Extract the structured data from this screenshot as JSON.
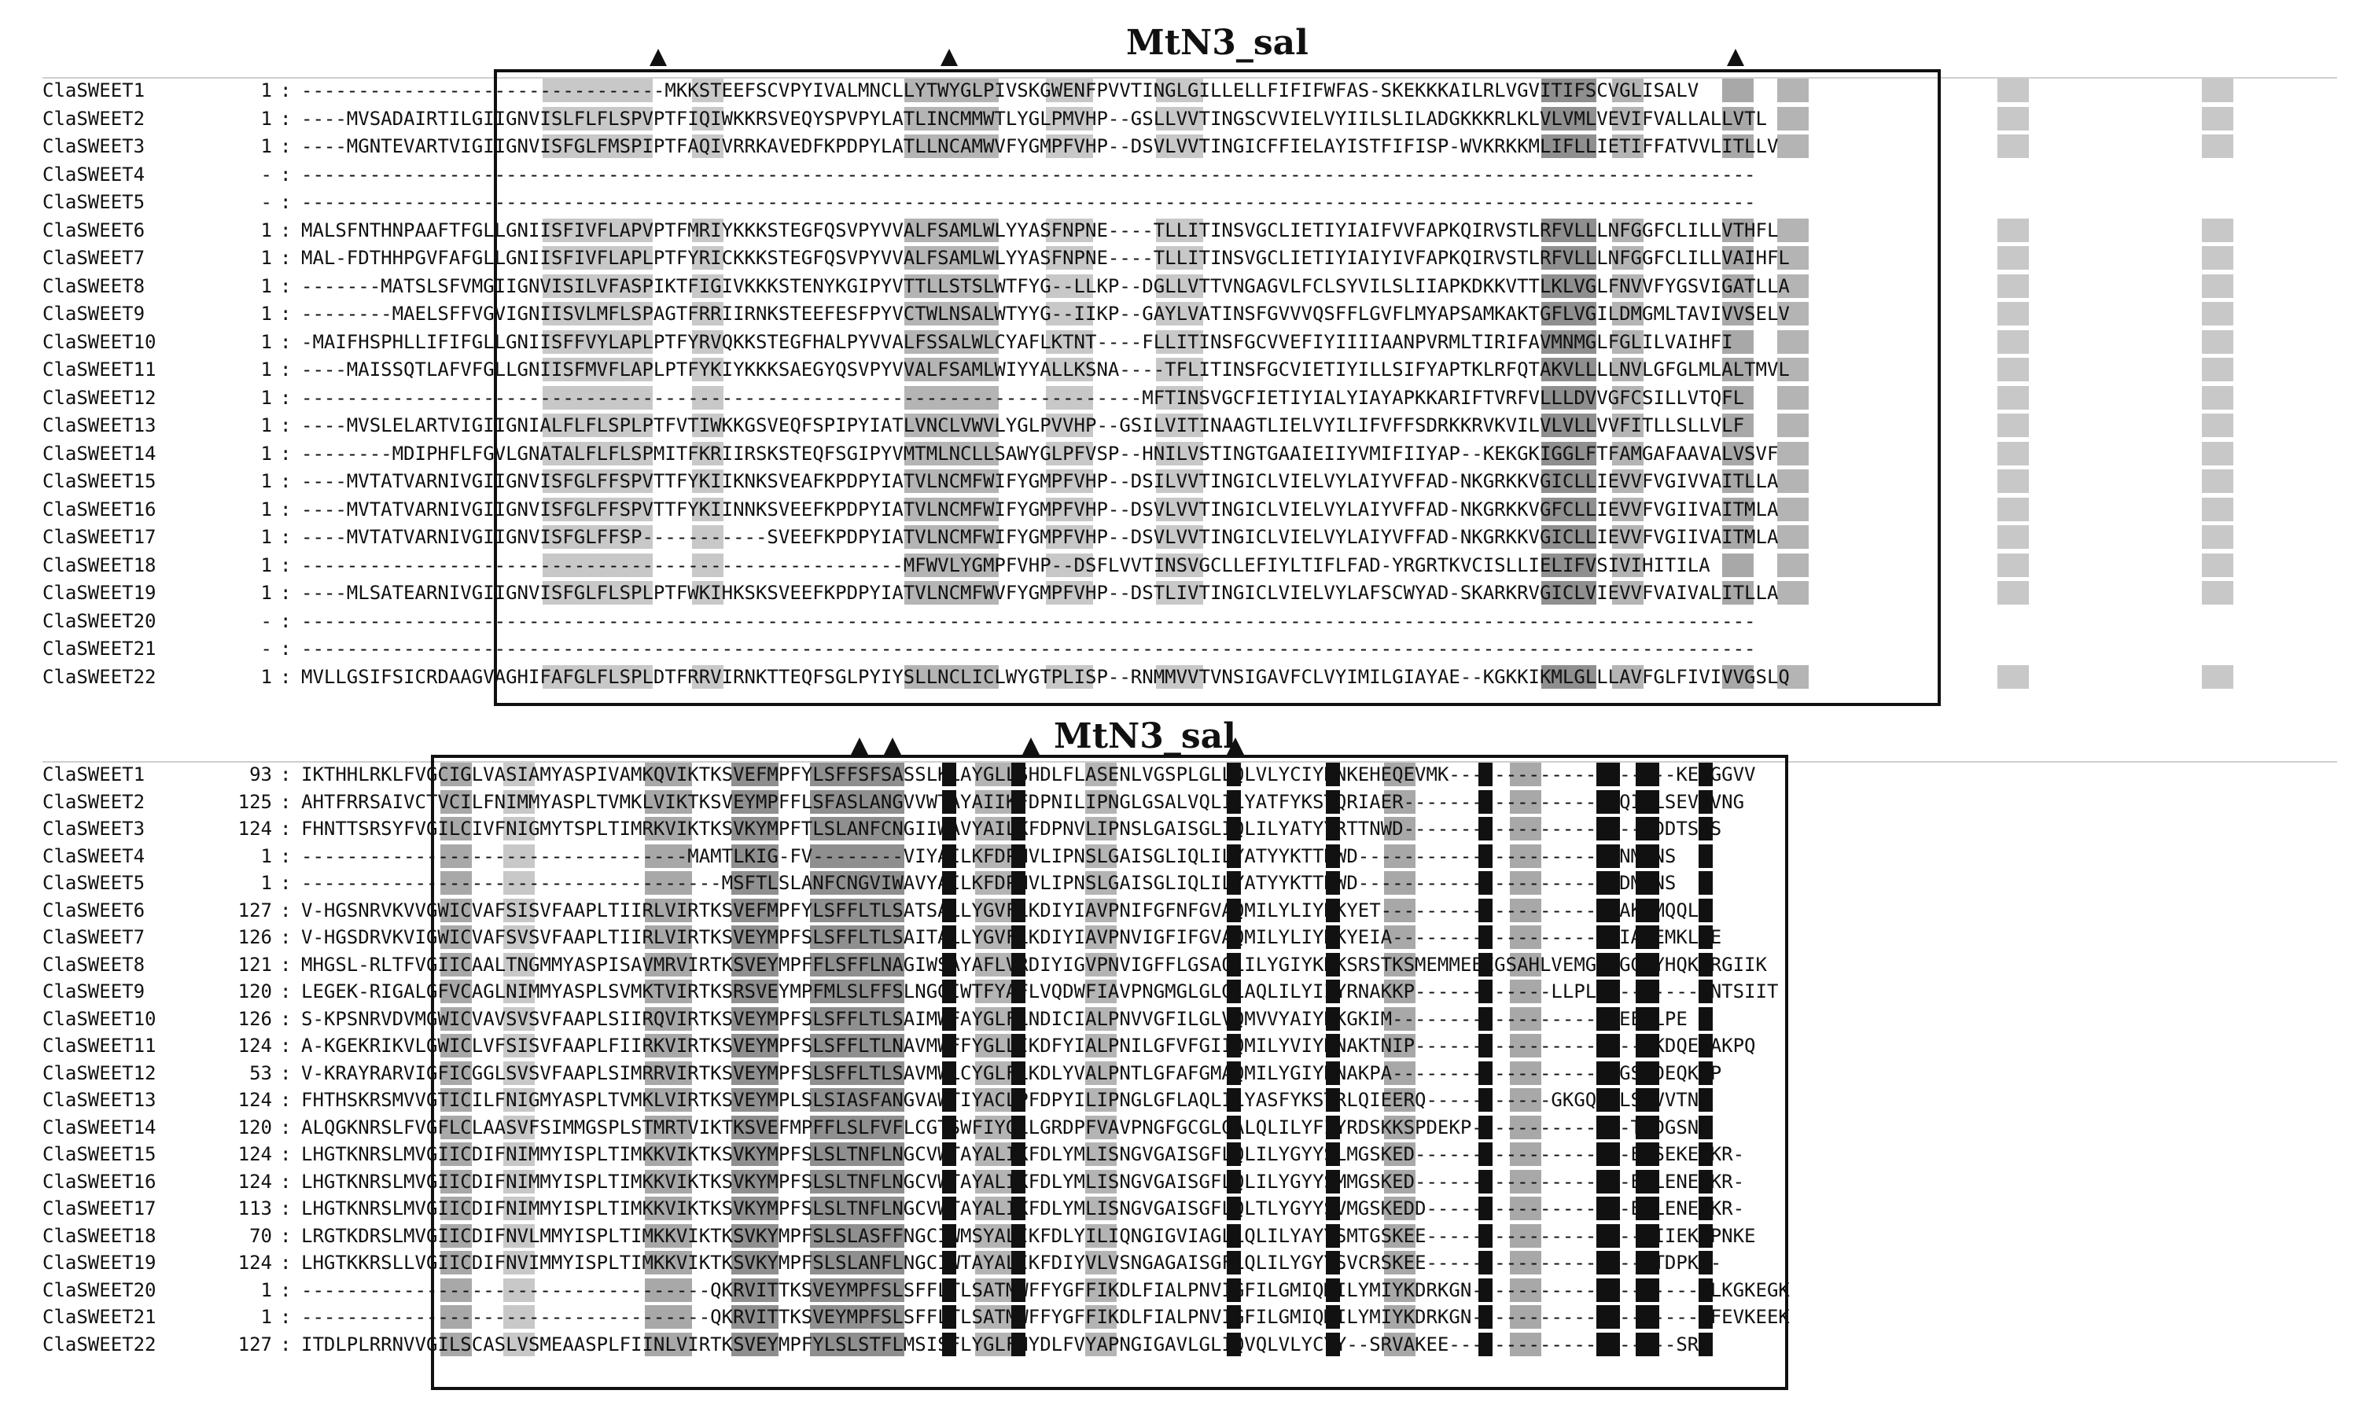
{
  "block1": {
    "title": "MtN3_sal",
    "rows": [
      {
        "name": "ClaSWEET1",
        "num": "1",
        "seq": "--------------------------------MKKSTEEFSCVPYIVALMNCLLYTWYGLPIVSKGWENFPVVTINGLGILLELLFIFIFWFAS-SKEKKKAILRLVGVITIFSCVGLISALV"
      },
      {
        "name": "ClaSWEET2",
        "num": "1",
        "seq": "----MVSADAIRTILGIIGNVISLFLFLSPVPTFIQIWKKRSVEQYSPVPYLATLINCMMWTLYGLPMVHP--GSLLVVTINGSCVVIELVYIILSLILADGKKKRLKLVLVMLVEVIFVALLALLVTL"
      },
      {
        "name": "ClaSWEET3",
        "num": "1",
        "seq": "----MGNTEVARTVIGIIGNVISFGLFMSPIPTFAQIVRRKAVEDFKPDPYLATLLNCAMWVFYGMPFVHP--DSVLVVTINGICFFIELAYISTFIFISP-WVKRKKMLIFLLIETIFFATVVLITLLV"
      },
      {
        "name": "ClaSWEET4",
        "num": "-",
        "seq": "--------------------------------------------------------------------------------------------------------------------------------"
      },
      {
        "name": "ClaSWEET5",
        "num": "-",
        "seq": "--------------------------------------------------------------------------------------------------------------------------------"
      },
      {
        "name": "ClaSWEET6",
        "num": "1",
        "seq": "MALSFNTHNPAAFTFGLLGNIISFIVFLAPVPTFMRIYKKKSTEGFQSVPYVVALFSAMLWLYYASFNPNE----TLLITINSVGCLIETIYIAIFVVFAPKQIRVSTLRFVLLLNFGGFCLILLVTHFL"
      },
      {
        "name": "ClaSWEET7",
        "num": "1",
        "seq": "MAL-FDTHHPGVFAFGLLGNIISFIVFLAPLPTFYRICKKKSTEGFQSVPYVVALFSAMLWLYYASFNPNE----TLLITINSVGCLIETIYIAIYIVFAPKQIRVSTLRFVLLLNFGGFCLILLVAIHFL"
      },
      {
        "name": "ClaSWEET8",
        "num": "1",
        "seq": "-------MATSLSFVMGIIGNVISILVFASPIKTFIGIVKKKSTENYKGIPYVTTLLSTSLWTFYG--LLKP--DGLLVTTVNGAGVLFCLSYVILSLIIAPKDKKVTTLKLVGLFNVVFYGSVIGATLLA"
      },
      {
        "name": "ClaSWEET9",
        "num": "1",
        "seq": "--------MAELSFFVGVIGNIISVLMFLSPAGTFRRIIRNKSTEEFESFPYVCTWLNSALWTYYG--IIKP--GAYLVATINSFGVVVQSFFLGVFLMYAPSAMKAKTGFLVGILDMGMLTAVIVVSELV"
      },
      {
        "name": "ClaSWEET10",
        "num": "1",
        "seq": "-MAIFHSPHLLIFIFGLLGNIISFFVYLAPLPTFYRVQKKSTEGFHALPYVVALFSSALWLCYAFLKTNT----FLLITINSFGCVVEFIYIIIIAANPVRMLTIRIFAVMNMGLFGLILVAIHFI"
      },
      {
        "name": "ClaSWEET11",
        "num": "1",
        "seq": "----MAISSQTLAFVFGLLGNIISFMVFLAPLPTFYKIYKKKSAEGYQSVPYVVALFSAMLWIYYALLKSNA----TFLITINSFGCVIETIYILLSIFYAPTKLRFQTAKVLLLLNVLGFGLMLALTMVL"
      },
      {
        "name": "ClaSWEET12",
        "num": "1",
        "seq": "--------------------------------------------------------------------------MFTINSVGCFIETIYIALYIAYAPKKARIFTVRFVLLLDVVGFCSILLVTQFL"
      },
      {
        "name": "ClaSWEET13",
        "num": "1",
        "seq": "----MVSLELARTVIGIIGNIALFLFLSPLPTFVTIWKKGSVEQFSPIPYIATLVNCLVWVLYGLPVVHP--GSILVITINAAGTLIELVYILIFVFFSDRKKRVKVILVLVLLVVFITLLSLLVLF"
      },
      {
        "name": "ClaSWEET14",
        "num": "1",
        "seq": "--------MDIPHFLFGVLGNATALFLFLSPMITFKRIIRSKSTEQFSGIPYVMTMLNCLLSAWYGLPFVSP--HNILVSTINGTGAAIEIIYVMIFIIYAP--KEKGKIGGLFTFAMGAFAAVALVSVF"
      },
      {
        "name": "ClaSWEET15",
        "num": "1",
        "seq": "----MVTATVARNIVGIIGNVISFGLFFSPVTTFYKIIKNKSVEAFKPDPYIATVLNCMFWIFYGMPFVHP--DSILVVTINGICLVIELVYLAIYVFFAD-NKGRKKVGICLLIEVVFVGIVVAITLLA"
      },
      {
        "name": "ClaSWEET16",
        "num": "1",
        "seq": "----MVTATVARNIVGIIGNVISFGLFFSPVTTFYKIINNKSVEEFKPDPYIATVLNCMFWIFYGMPFVHP--DSVLVVTINGICLVIELVYLAIYVFFAD-NKGRKKVGFCLLIEVVFVGIIVAITMLA"
      },
      {
        "name": "ClaSWEET17",
        "num": "1",
        "seq": "----MVTATVARNIVGIIGNVISFGLFFSP-----------SVEEFKPDPYIATVLNCMFWIFYGMPFVHP--DSVLVVTINGICLVIELVYLAIYVFFAD-NKGRKKVGICLLIEVVFVGIIVAITMLA"
      },
      {
        "name": "ClaSWEET18",
        "num": "1",
        "seq": "-----------------------------------------------------MFWVLYGMPFVHP--DSFLVVTINSVGCLLEFIYLTIFLFAD-YRGRTKVCISLLIELIFVSIVIHITILA"
      },
      {
        "name": "ClaSWEET19",
        "num": "1",
        "seq": "----MLSATEARNIVGIIGNVISFGLFLSPLPTFWKIHKSKSVEEFKPDPYIATVLNCMFWVFYGMPFVHP--DSTLIVTINGICLVIELVYLAFSCWYAD-SKARKRVGICLVIEVVFVAIVALITLLA"
      },
      {
        "name": "ClaSWEET20",
        "num": "-",
        "seq": "--------------------------------------------------------------------------------------------------------------------------------"
      },
      {
        "name": "ClaSWEET21",
        "num": "-",
        "seq": "--------------------------------------------------------------------------------------------------------------------------------"
      },
      {
        "name": "ClaSWEET22",
        "num": "1",
        "seq": "MVLLGSIFSICRDAAGVAGHIFAFGLFLSPLDTFRRVIRNKTTEQFSGLPYIYSLLNCLICLWYGTPLISP--RNMMVVTVNSIGAVFCLVYIMILGIAYAE--KGKKIKMLGLLLAVFGLFIVIVVGSLQ"
      }
    ]
  },
  "block2": {
    "title": "MtN3_sal",
    "rows": [
      {
        "name": "ClaSWEET1",
        "num": "93",
        "seq": "IKTHHLRKLFVGCIGLVASIAMYASPIVAMKQVIKTKSVEFMPFYLSFFSFSASSLKLAYGLLSHDLFLASENLVGSPLGLLQLVLYCIYRNKEHEQEVMK--------------------KEKGGVV"
      },
      {
        "name": "ClaSWEET2",
        "num": "125",
        "seq": "AHTFRRSAIVCTVCILFNIMMYASPLTVMKLVIKTKSVEYMPFFLSFASLANGVVWTAYAIIKFDPNILIPNGLGSALVQLILYATFYKSTQRIAER-----------------KAQIRLSEVVVNG"
      },
      {
        "name": "ClaSWEET3",
        "num": "124",
        "seq": "FHNTTSRSYFVGILCIVFNIGMYTSPLTIMRKVIKTKSVKYMPFTLSLANFCNGIIWAVYAILKFDPNVLIPNSLGAISGLIQLILYATYYRTTNWD---------------------SDDTSHS"
      },
      {
        "name": "ClaSWEET4",
        "num": "1",
        "seq": "----------------------------------MAMTLKIG-FV--------VIYAILKFDPNVLIPNSLGAISGLIQLILYATYYKTTNWD---------------------DDNMSNS"
      },
      {
        "name": "ClaSWEET5",
        "num": "1",
        "seq": "-------------------------------------MSFTLSLANFCNGVIWAVYAILKFDPNVLIPNSLGAISGLIQLILYATYYKTTNWD---------------------SDDMLNS"
      },
      {
        "name": "ClaSWEET6",
        "num": "127",
        "seq": "V-HGSNRVKVVGWICVAFSISVFAAPLTIIRLVIRTKSVEFMPFYLSFFLTLSATSALLYGVFLKDIYIAVPNIFGFNFGVAQMILYLIYKKYET---------------------AKEMQQLP"
      },
      {
        "name": "ClaSWEET7",
        "num": "126",
        "seq": "V-HGSDRVKVIGWICVAFSVSVFAAPLTIIRLVIRTKSVEYMPFSLSFFLTLSAITALLYGVFLKDIYIAVPNVIGFIFGVAQMILYLIYKKYEIA--------------------IAKEMKLPE"
      },
      {
        "name": "ClaSWEET8",
        "num": "121",
        "seq": "MHGSL-RLTFVGIICAALTNGMMYASPISAVMRVIRTKSVEYMPFFLSFFLNAGIWSAYAFLVRDIYIGVPNVIGFFLGSAQLILYGIYKKKSRSTKSMEMMEEEGSAHLVEMGMNGGDYHQKNRGIIK"
      },
      {
        "name": "ClaSWEET9",
        "num": "120",
        "seq": "LEGEK-RIGALGFVCAGLNIMMYASPLSVMKTVIRTKSRSVEYMPFMLSLFFSLNGGIWTFYAFLVQDWFIAVPNGMGLGLGLAQLILYIIYRNAKKP------------LLPL----------NTSIIT"
      },
      {
        "name": "ClaSWEET10",
        "num": "126",
        "seq": "S-KPSNRVDVMGWICVAVSVSVFAAPLSIIRQVIRTKSVEYMPFSLSFFLTLSAIMWFAYGLFLNDICIALPNVVGFILGLVQMVVYAIYRKGKIM--------------------EEKLPE"
      },
      {
        "name": "ClaSWEET11",
        "num": "124",
        "seq": "A-KGEKRIKVLGWICLVFSISVFAAPLFIIRKVIRTKSVEYMPFSLSFFLTLNAVMWFFYGLLIKDFYIALPNILGFVFGIIQMILYVIYKNAKTNIP--------------------IKDQEGAKPQ"
      },
      {
        "name": "ClaSWEET12",
        "num": "53",
        "seq": "V-KRAYRARVIGFICGGLSVSVFAAPLSIMRRVIRTKSVEYMPFSLSFFLTLSAVMWLCYGLFLKDLYVALPNTLGFAFGMAQMILYGIYRNAKPA--------------------GSSDEQKLP"
      },
      {
        "name": "ClaSWEET13",
        "num": "124",
        "seq": "FHTHSKRSMVVGTICILFNIGMYASPLTVMKLVIRTKSVEYMPLSLSIASFANGVAWTIYACLPFDPYILIPNGLGFLAQLILYASFYKSTRLQIEERQ-----------GKGQVILSEVVTNG"
      },
      {
        "name": "ClaSWEET14",
        "num": "120",
        "seq": "ALQGKNRSLFVGFLCLAASVFSIMMGSPLSTMRTVIKTKSVEFMPFFLSLFVFLCGTSWFIYGLLGRDPFVAVPNGFGCGLGALQLILYFIYRDSKKSPDEKP--------------TNDGSNM"
      },
      {
        "name": "ClaSWEET15",
        "num": "124",
        "seq": "LHGTKNRSLMVGIICDIFNIMMYISPLTIMKKVIKTKSVKYMPFSLSLTNFLNGCVWTAYALIKFDLYMLISNGVGAISGFLQLILYGYYSLMGSKED-------------------EISEKEPKR-"
      },
      {
        "name": "ClaSWEET16",
        "num": "124",
        "seq": "LHGTKNRSLMVGIICDIFNIMMYISPLTIMKKVIKTKSVKYMPFSLSLTNFLNGCVWTAYALIKFDLYMLISNGVGAISGFLQLILYGYYSMMGSKED-------------------EILENEPKR-"
      },
      {
        "name": "ClaSWEET17",
        "num": "113",
        "seq": "LHGTKNRSLMVGIICDIFNIMMYISPLTIMKKVIKTKSVKYMPFSLSLTNFLNGCVWTAYALIKFDLYMLISNGVGAISGFLQLTLYGYYSVMGSKEDD------------------EILENEPKR-"
      },
      {
        "name": "ClaSWEET18",
        "num": "70",
        "seq": "LRGTKDRSLMVGIICDIFNVLMMYISPLTIMKKVIKTKSVKYMPFSLSLASFFNGCIWMSYALIKFDLYILIQNGIGVIAGLLQLILYAYYSMTGSKEE-------------------EIIEKEPNKE"
      },
      {
        "name": "ClaSWEET19",
        "num": "124",
        "seq": "LHGTKKRSLLVGIICDIFNVIMMYISPLTIMKKVIKTKSVKYMPFSLSLANFLNGCIWTAYALIKFDIYVLVSNGAGAISGFLQLILYGYYSVCRSKEE-------------------DTDPKT-"
      },
      {
        "name": "ClaSWEET20",
        "num": "1",
        "seq": "------------------------------------QKRVITTKSVEYMPFSLSFFLTLSATMWFFYGFFIKDLFIALPNVIGFILGMIQMILYMIYKDRKGN--------------------RLKGKEGK"
      },
      {
        "name": "ClaSWEET21",
        "num": "1",
        "seq": "------------------------------------QKRVITTKSVEYMPFSLSFFLTLSATMWFFYGFFIKDLFIALPNVIGFILGMIQMILYMIYKDRKGN--------------------SFEVKEEK"
      },
      {
        "name": "ClaSWEET22",
        "num": "127",
        "seq": "ITDLPLRRNVVGILSCASLVSMEAASPLFIINLVIRTKSVEYMPFYLSLSTFLMSISFLYGLFNYDLFVYAPNGIGAVLGLIQVQLVLYCYY--SRVAKEE--------------------SRE"
      }
    ]
  }
}
